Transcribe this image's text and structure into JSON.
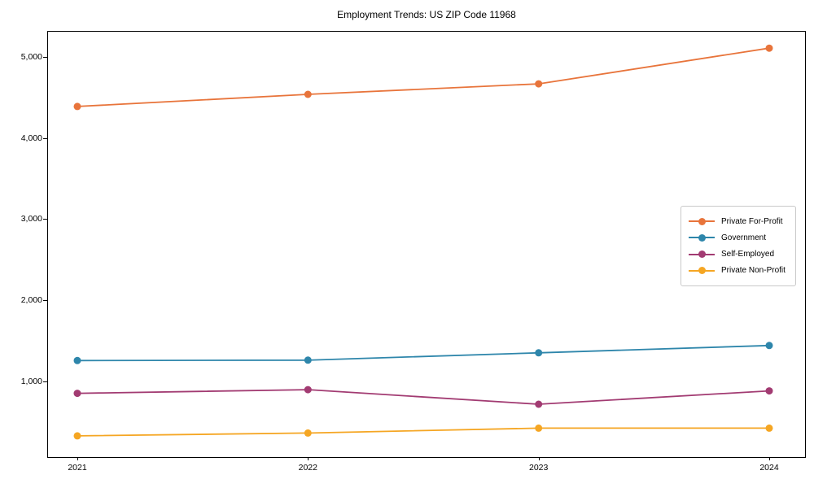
{
  "chart_data": {
    "type": "line",
    "title": "Employment Trends: US ZIP Code 11968",
    "categories": [
      "2021",
      "2022",
      "2023",
      "2024"
    ],
    "series": [
      {
        "name": "Private For-Profit",
        "color": "#E8743B",
        "values": [
          4400,
          4550,
          4680,
          5120
        ]
      },
      {
        "name": "Government",
        "color": "#2E86AB",
        "values": [
          1265,
          1270,
          1360,
          1450
        ]
      },
      {
        "name": "Self-Employed",
        "color": "#A23B72",
        "values": [
          860,
          905,
          725,
          890
        ]
      },
      {
        "name": "Private Non-Profit",
        "color": "#F5A623",
        "values": [
          335,
          370,
          430,
          430
        ]
      }
    ],
    "xlabel": "",
    "ylabel": "",
    "ylim": [
      73,
      5323
    ],
    "yticks": [
      1000,
      2000,
      3000,
      4000,
      5000
    ],
    "ytick_labels": [
      "1,000",
      "2,000",
      "3,000",
      "4,000",
      "5,000"
    ],
    "grid": false,
    "legend_position": "center right",
    "marker": "circle",
    "line_width": 1.8,
    "marker_radius": 4.5,
    "axis_color": "#000000",
    "background_color": "#ffffff"
  }
}
